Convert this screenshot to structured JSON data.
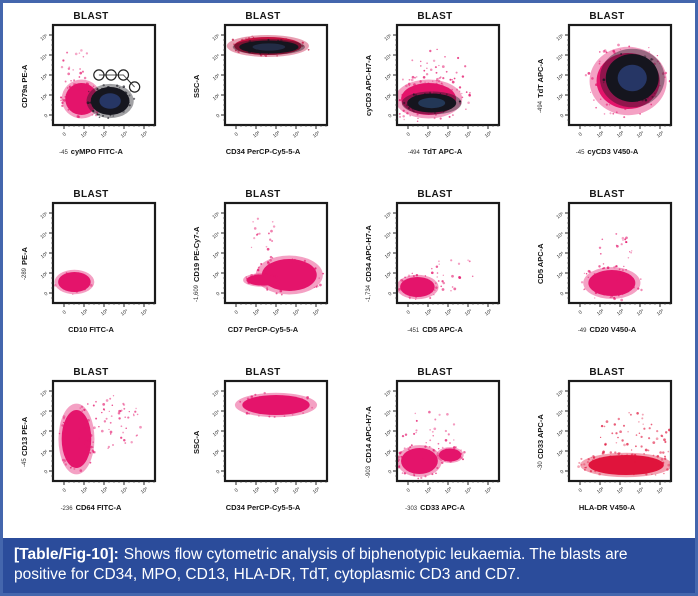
{
  "figure": {
    "border_color": "#4466ad",
    "plot_bg": "#ffffff",
    "dot_dark": "#16161f",
    "dot_magenta": "#e4146b",
    "axis_ticks": [
      "0",
      "10²",
      "10³",
      "10⁴",
      "10⁵"
    ],
    "caption": {
      "label": "[Table/Fig-10]:",
      "text": "Shows flow cytometric analysis of biphenotypic leukaemia. The blasts are positive for CD34, MPO, CD13, HLA-DR, TdT, cytoplasmic CD3 and CD7.",
      "bg": "#2b4c9b",
      "fg": "#ffffff"
    }
  },
  "chart_data": [
    {
      "type": "scatter",
      "name": "cd79a-pe-vs-cympo-fitc",
      "title": "BLAST",
      "ylabel": "CD79a PE-A",
      "xlabel": "cyMPO FITC-A",
      "y_neg": "",
      "x_neg": "-45",
      "clusters": [
        {
          "color": "#e4146b",
          "cx": 0.28,
          "cy": 0.74,
          "rx": 0.16,
          "ry": 0.16,
          "speckle": 55,
          "spread": 1.4
        },
        {
          "color": "#16161f",
          "cx": 0.56,
          "cy": 0.76,
          "rx": 0.19,
          "ry": 0.14,
          "speckle": 60,
          "spread": 1.3,
          "inner": "#2a3f77"
        },
        {
          "color": "#e4146b",
          "cx": 0.24,
          "cy": 0.44,
          "rx": 0.07,
          "ry": 0.1,
          "speckle": 22,
          "spread": 2.2,
          "dotsOnly": true
        }
      ],
      "gates": [
        {
          "points": [
            [
              0.45,
              0.5
            ],
            [
              0.57,
              0.5
            ],
            [
              0.69,
              0.5
            ],
            [
              0.8,
              0.62
            ]
          ],
          "r": 0.05
        }
      ]
    },
    {
      "type": "scatter",
      "name": "ssc-vs-cd34-percp",
      "title": "BLAST",
      "ylabel": "SSC-A",
      "xlabel": "CD34 PerCP-Cy5-5-A",
      "y_neg": "",
      "x_neg": "",
      "clusters": [
        {
          "color": "#c40f3f",
          "cx": 0.42,
          "cy": 0.21,
          "rx": 0.33,
          "ry": 0.09,
          "speckle": 40,
          "spread": 1.3
        },
        {
          "color": "#15151e",
          "cx": 0.43,
          "cy": 0.22,
          "rx": 0.29,
          "ry": 0.065,
          "speckle": 25,
          "spread": 1.1,
          "inner": "#27324f"
        }
      ],
      "gates": []
    },
    {
      "type": "scatter",
      "name": "cycd3-apch7-vs-tdt-apc",
      "title": "BLAST",
      "ylabel": "cyCD3 APC-H7-A",
      "xlabel": "TdT APC-A",
      "y_neg": "",
      "x_neg": "-494",
      "clusters": [
        {
          "color": "#e4146b",
          "cx": 0.31,
          "cy": 0.74,
          "rx": 0.27,
          "ry": 0.16,
          "speckle": 85,
          "spread": 1.6
        },
        {
          "color": "#15151e",
          "cx": 0.34,
          "cy": 0.78,
          "rx": 0.24,
          "ry": 0.095,
          "speckle": 30,
          "spread": 1.2,
          "inner": "#274064"
        },
        {
          "color": "#e4146b",
          "cx": 0.4,
          "cy": 0.46,
          "rx": 0.18,
          "ry": 0.13,
          "speckle": 40,
          "spread": 1.7,
          "dotsOnly": true
        }
      ],
      "gates": []
    },
    {
      "type": "scatter",
      "name": "tdt-apc-vs-cycd3-v450",
      "title": "BLAST",
      "ylabel": "TdT APC-A",
      "xlabel": "cyCD3 V450-A",
      "y_neg": "-494",
      "x_neg": "-45",
      "clusters": [
        {
          "color": "#e4146b",
          "cx": 0.58,
          "cy": 0.56,
          "rx": 0.31,
          "ry": 0.28,
          "speckle": 90,
          "spread": 1.4
        },
        {
          "color": "#15151e",
          "cx": 0.62,
          "cy": 0.53,
          "rx": 0.26,
          "ry": 0.24,
          "speckle": 45,
          "spread": 1.1,
          "inner": "#2a3f77"
        }
      ],
      "gates": []
    },
    {
      "type": "scatter",
      "name": "pe-vs-cd10-fitc",
      "title": "BLAST",
      "ylabel": "PE-A",
      "xlabel": "CD10 FITC-A",
      "y_neg": "-289",
      "x_neg": "",
      "clusters": [
        {
          "color": "#e4146b",
          "cx": 0.21,
          "cy": 0.79,
          "rx": 0.16,
          "ry": 0.1,
          "speckle": 30,
          "spread": 1.25
        }
      ],
      "gates": []
    },
    {
      "type": "scatter",
      "name": "cd19-pecy7-vs-cd7-percp",
      "title": "BLAST",
      "ylabel": "CD19 PE-Cy7-A",
      "xlabel": "CD7 PerCP-Cy5-5-A",
      "y_neg": "-1,609",
      "x_neg": "",
      "clusters": [
        {
          "color": "#e4146b",
          "cx": 0.63,
          "cy": 0.72,
          "rx": 0.27,
          "ry": 0.16,
          "speckle": 55,
          "spread": 1.3
        },
        {
          "color": "#e4146b",
          "cx": 0.36,
          "cy": 0.77,
          "rx": 0.15,
          "ry": 0.055,
          "speckle": 18,
          "spread": 1.2
        },
        {
          "color": "#e4146b",
          "cx": 0.36,
          "cy": 0.33,
          "rx": 0.09,
          "ry": 0.09,
          "speckle": 16,
          "spread": 2.0,
          "dotsOnly": true
        }
      ],
      "gates": []
    },
    {
      "type": "scatter",
      "name": "cd34-apch7-vs-cd5-apc",
      "title": "BLAST",
      "ylabel": "CD34 APC-H7-A",
      "xlabel": "CD5 APC-A",
      "y_neg": "-1,734",
      "x_neg": "-451",
      "clusters": [
        {
          "color": "#e4146b",
          "cx": 0.2,
          "cy": 0.84,
          "rx": 0.17,
          "ry": 0.1,
          "speckle": 45,
          "spread": 1.4
        },
        {
          "color": "#e4146b",
          "cx": 0.58,
          "cy": 0.7,
          "rx": 0.14,
          "ry": 0.1,
          "speckle": 22,
          "spread": 1.9,
          "dotsOnly": true
        }
      ],
      "gates": []
    },
    {
      "type": "scatter",
      "name": "cd5-apc-vs-cd20-v450",
      "title": "BLAST",
      "ylabel": "CD5 APC-A",
      "xlabel": "CD20 V450-A",
      "y_neg": "",
      "x_neg": "-49",
      "clusters": [
        {
          "color": "#e4146b",
          "cx": 0.42,
          "cy": 0.8,
          "rx": 0.23,
          "ry": 0.13,
          "speckle": 60,
          "spread": 1.4
        },
        {
          "color": "#e4146b",
          "cx": 0.45,
          "cy": 0.5,
          "rx": 0.1,
          "ry": 0.17,
          "speckle": 26,
          "spread": 1.7,
          "dotsOnly": true
        }
      ],
      "gates": []
    },
    {
      "type": "scatter",
      "name": "cd13-pe-vs-cd64-fitc",
      "title": "BLAST",
      "ylabel": "CD13 PE-A",
      "xlabel": "CD64 FITC-A",
      "y_neg": "-45",
      "x_neg": "-236",
      "clusters": [
        {
          "color": "#e4146b",
          "cx": 0.23,
          "cy": 0.58,
          "rx": 0.145,
          "ry": 0.29,
          "speckle": 65,
          "spread": 1.25
        },
        {
          "color": "#e4146b",
          "cx": 0.52,
          "cy": 0.44,
          "rx": 0.22,
          "ry": 0.19,
          "speckle": 70,
          "spread": 1.6,
          "dotsOnly": true
        }
      ],
      "gates": []
    },
    {
      "type": "scatter",
      "name": "ssc-vs-cd34-percp-2",
      "title": "BLAST",
      "ylabel": "SSC-A",
      "xlabel": "CD34 PerCP-Cy5-5-A",
      "y_neg": "",
      "x_neg": "",
      "clusters": [
        {
          "color": "#e4146b",
          "cx": 0.5,
          "cy": 0.24,
          "rx": 0.33,
          "ry": 0.1,
          "speckle": 55,
          "spread": 1.25
        }
      ],
      "gates": []
    },
    {
      "type": "scatter",
      "name": "cd14-apch7-vs-cd33-apc",
      "title": "BLAST",
      "ylabel": "CD14 APC-H7-A",
      "xlabel": "CD33 APC-A",
      "y_neg": "-903",
      "x_neg": "-303",
      "clusters": [
        {
          "color": "#e4146b",
          "cx": 0.22,
          "cy": 0.8,
          "rx": 0.18,
          "ry": 0.13,
          "speckle": 55,
          "spread": 1.35
        },
        {
          "color": "#e4146b",
          "cx": 0.52,
          "cy": 0.74,
          "rx": 0.11,
          "ry": 0.065,
          "speckle": 20,
          "spread": 1.4
        },
        {
          "color": "#e4146b",
          "cx": 0.33,
          "cy": 0.52,
          "rx": 0.16,
          "ry": 0.15,
          "speckle": 30,
          "spread": 1.8,
          "dotsOnly": true
        }
      ],
      "gates": []
    },
    {
      "type": "scatter",
      "name": "cd33-apc-vs-hladr-v450",
      "title": "BLAST",
      "ylabel": "CD33 APC-A",
      "xlabel": "HLA-DR V450-A",
      "y_neg": "-30",
      "x_neg": "",
      "clusters": [
        {
          "color": "#e0143c",
          "cx": 0.56,
          "cy": 0.84,
          "rx": 0.37,
          "ry": 0.1,
          "speckle": 75,
          "spread": 1.35
        },
        {
          "color": "#e0143c",
          "cx": 0.66,
          "cy": 0.56,
          "rx": 0.26,
          "ry": 0.16,
          "speckle": 65,
          "spread": 1.6,
          "dotsOnly": true
        }
      ],
      "gates": []
    }
  ]
}
